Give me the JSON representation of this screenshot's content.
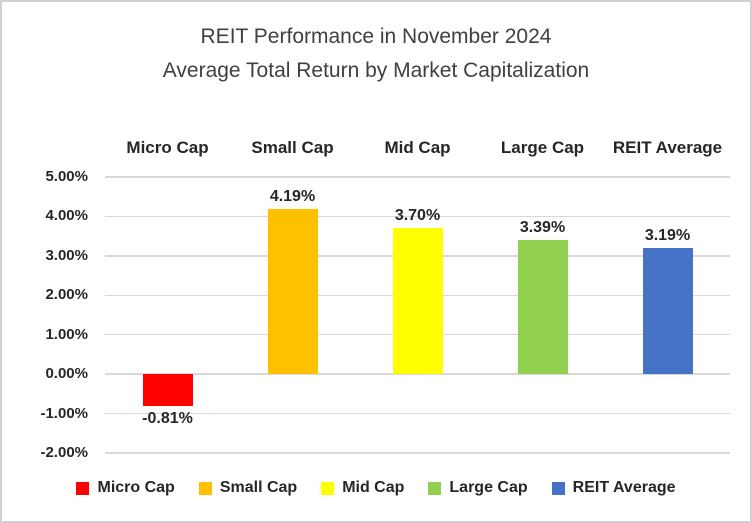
{
  "title": {
    "line1": "REIT Performance in November 2024",
    "line2": "Average Total Return by Market Capitalization"
  },
  "chart_data": {
    "type": "bar",
    "title": "REIT Performance in November 2024 - Average Total Return by Market Capitalization",
    "categories": [
      "Micro Cap",
      "Small Cap",
      "Mid Cap",
      "Large Cap",
      "REIT Average"
    ],
    "values": [
      -0.81,
      4.19,
      3.7,
      3.39,
      3.19
    ],
    "data_labels": [
      "-0.81%",
      "4.19%",
      "3.70%",
      "3.39%",
      "3.19%"
    ],
    "bar_colors": [
      "#ff0000",
      "#ffc000",
      "#ffff00",
      "#92d050",
      "#4472c4"
    ],
    "xlabel": "",
    "ylabel": "",
    "ylim": [
      -2,
      5
    ],
    "ytick_interval": 1,
    "ytick_labels": [
      "5.00%",
      "4.00%",
      "3.00%",
      "2.00%",
      "1.00%",
      "0.00%",
      "-1.00%",
      "-2.00%"
    ],
    "grid": true,
    "gridline_color": "#d9d9d9",
    "text_color": "#262626",
    "title_color": "#404040",
    "legend_position": "bottom"
  }
}
